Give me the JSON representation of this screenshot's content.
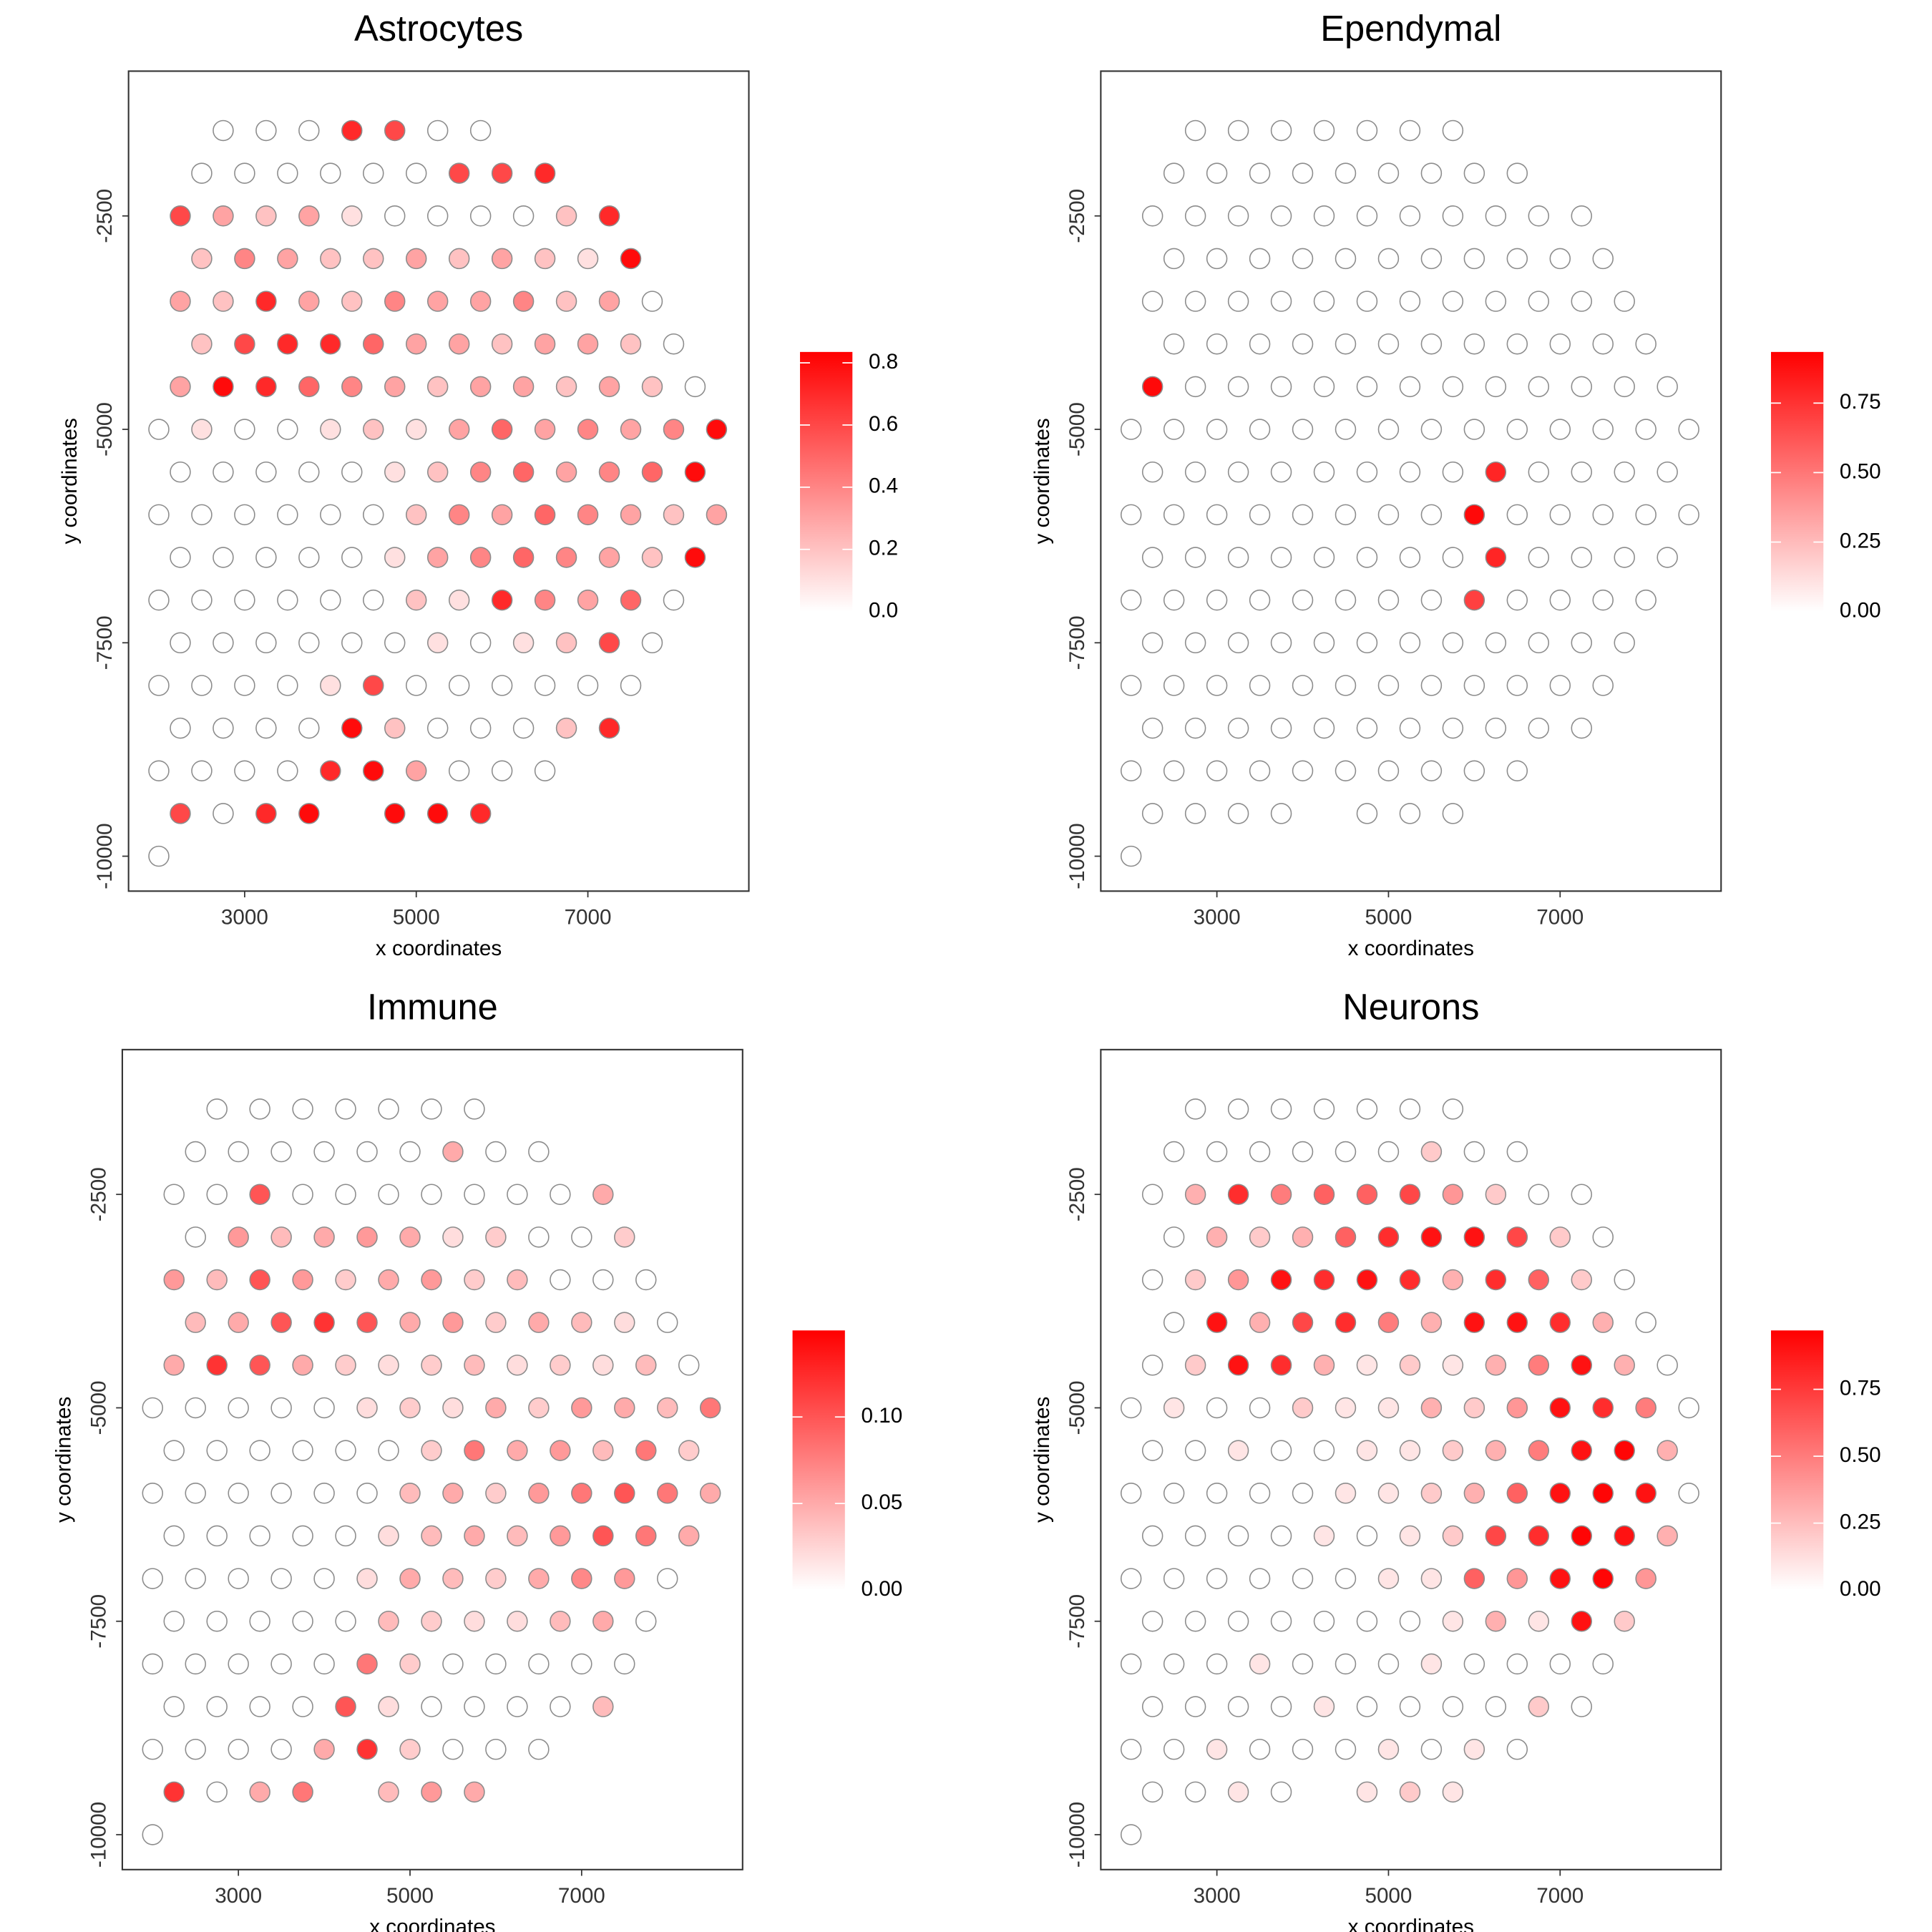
{
  "chart_data": {
    "type": "scatter",
    "x_label": "x coordinates",
    "y_label": "y coordinates",
    "xlim": [
      1647,
      8876
    ],
    "ylim": [
      -10409,
      -804
    ],
    "xticks": [
      3000,
      5000,
      7000
    ],
    "yticks": [
      -2500,
      -5000,
      -7500,
      -10000
    ],
    "low_color": "#ffffff",
    "x": [
      2750,
      3250,
      3750,
      4250,
      4750,
      5250,
      5750,
      2500,
      3000,
      3500,
      4000,
      4500,
      5000,
      5500,
      6000,
      6500,
      2250,
      2750,
      3250,
      3750,
      4250,
      4750,
      5250,
      5750,
      6250,
      6750,
      7250,
      2500,
      3000,
      3500,
      4000,
      4500,
      5000,
      5500,
      6000,
      6500,
      7000,
      7500,
      2250,
      2750,
      3250,
      3750,
      4250,
      4750,
      5250,
      5750,
      6250,
      6750,
      7250,
      7750,
      2500,
      3000,
      3500,
      4000,
      4500,
      5000,
      5500,
      6000,
      6500,
      7000,
      7500,
      8000,
      2250,
      2750,
      3250,
      3750,
      4250,
      4750,
      5250,
      5750,
      6250,
      6750,
      7250,
      7750,
      8250,
      2000,
      2500,
      3000,
      3500,
      4000,
      4500,
      5000,
      5500,
      6000,
      6500,
      7000,
      7500,
      8000,
      8500,
      2250,
      2750,
      3250,
      3750,
      4250,
      4750,
      5250,
      5750,
      6250,
      6750,
      7250,
      7750,
      8250,
      2000,
      2500,
      3000,
      3500,
      4000,
      4500,
      5000,
      5500,
      6000,
      6500,
      7000,
      7500,
      8000,
      8500,
      2250,
      2750,
      3250,
      3750,
      4250,
      4750,
      5250,
      5750,
      6250,
      6750,
      7250,
      7750,
      8250,
      2000,
      2500,
      3000,
      3500,
      4000,
      4500,
      5000,
      5500,
      6000,
      6500,
      7000,
      7500,
      8000,
      2250,
      2750,
      3250,
      3750,
      4250,
      4750,
      5250,
      5750,
      6250,
      6750,
      7250,
      7750,
      2000,
      2500,
      3000,
      3500,
      4000,
      4500,
      5000,
      5500,
      6000,
      6500,
      7000,
      7500,
      2250,
      2750,
      3250,
      3750,
      4250,
      4750,
      5250,
      5750,
      6250,
      6750,
      7250,
      2000,
      2500,
      3000,
      3500,
      4000,
      4500,
      5000,
      5500,
      6000,
      6500,
      2250,
      2750,
      3250,
      3750,
      4750,
      5250,
      5750,
      2000
    ],
    "y": [
      -1500,
      -1500,
      -1500,
      -1500,
      -1500,
      -1500,
      -1500,
      -2000,
      -2000,
      -2000,
      -2000,
      -2000,
      -2000,
      -2000,
      -2000,
      -2000,
      -2500,
      -2500,
      -2500,
      -2500,
      -2500,
      -2500,
      -2500,
      -2500,
      -2500,
      -2500,
      -2500,
      -3000,
      -3000,
      -3000,
      -3000,
      -3000,
      -3000,
      -3000,
      -3000,
      -3000,
      -3000,
      -3000,
      -3500,
      -3500,
      -3500,
      -3500,
      -3500,
      -3500,
      -3500,
      -3500,
      -3500,
      -3500,
      -3500,
      -3500,
      -4000,
      -4000,
      -4000,
      -4000,
      -4000,
      -4000,
      -4000,
      -4000,
      -4000,
      -4000,
      -4000,
      -4000,
      -4500,
      -4500,
      -4500,
      -4500,
      -4500,
      -4500,
      -4500,
      -4500,
      -4500,
      -4500,
      -4500,
      -4500,
      -4500,
      -5000,
      -5000,
      -5000,
      -5000,
      -5000,
      -5000,
      -5000,
      -5000,
      -5000,
      -5000,
      -5000,
      -5000,
      -5000,
      -5000,
      -5500,
      -5500,
      -5500,
      -5500,
      -5500,
      -5500,
      -5500,
      -5500,
      -5500,
      -5500,
      -5500,
      -5500,
      -5500,
      -6000,
      -6000,
      -6000,
      -6000,
      -6000,
      -6000,
      -6000,
      -6000,
      -6000,
      -6000,
      -6000,
      -6000,
      -6000,
      -6000,
      -6500,
      -6500,
      -6500,
      -6500,
      -6500,
      -6500,
      -6500,
      -6500,
      -6500,
      -6500,
      -6500,
      -6500,
      -6500,
      -7000,
      -7000,
      -7000,
      -7000,
      -7000,
      -7000,
      -7000,
      -7000,
      -7000,
      -7000,
      -7000,
      -7000,
      -7000,
      -7500,
      -7500,
      -7500,
      -7500,
      -7500,
      -7500,
      -7500,
      -7500,
      -7500,
      -7500,
      -7500,
      -7500,
      -8000,
      -8000,
      -8000,
      -8000,
      -8000,
      -8000,
      -8000,
      -8000,
      -8000,
      -8000,
      -8000,
      -8000,
      -8500,
      -8500,
      -8500,
      -8500,
      -8500,
      -8500,
      -8500,
      -8500,
      -8500,
      -8500,
      -8500,
      -9000,
      -9000,
      -9000,
      -9000,
      -9000,
      -9000,
      -9000,
      -9000,
      -9000,
      -9000,
      -9500,
      -9500,
      -9500,
      -9500,
      -9500,
      -9500,
      -9500,
      -10000
    ],
    "series": [
      {
        "name": "Astrocytes",
        "color": "#ff0000",
        "colorbar_lim": [
          0,
          0.835
        ],
        "colorbar_ticks": [
          {
            "value": 0,
            "label": "0.0"
          },
          0.2,
          0.4,
          0.6,
          0.8
        ],
        "values": [
          0,
          0,
          0,
          0.7,
          0.6,
          0,
          0,
          0,
          0,
          0,
          0,
          0,
          0,
          0.6,
          0.6,
          0.7,
          0.6,
          0.3,
          0.2,
          0.3,
          0.1,
          0,
          0,
          0,
          0,
          0.2,
          0.7,
          0.2,
          0.4,
          0.3,
          0.2,
          0.2,
          0.3,
          0.2,
          0.3,
          0.2,
          0.1,
          0.8,
          0.3,
          0.2,
          0.7,
          0.3,
          0.2,
          0.4,
          0.3,
          0.3,
          0.4,
          0.2,
          0.3,
          0,
          0.2,
          0.6,
          0.7,
          0.7,
          0.5,
          0.3,
          0.3,
          0.2,
          0.3,
          0.3,
          0.2,
          0,
          0.3,
          0.8,
          0.7,
          0.5,
          0.4,
          0.3,
          0.2,
          0.3,
          0.3,
          0.2,
          0.3,
          0.2,
          0,
          0,
          0.1,
          0,
          0,
          0.1,
          0.2,
          0.1,
          0.3,
          0.5,
          0.3,
          0.4,
          0.3,
          0.4,
          0.8,
          0,
          0,
          0,
          0,
          0,
          0.1,
          0.2,
          0.4,
          0.5,
          0.3,
          0.4,
          0.5,
          0.8,
          0,
          0,
          0,
          0,
          0,
          0,
          0.2,
          0.4,
          0.3,
          0.5,
          0.4,
          0.3,
          0.2,
          0.3,
          0,
          0,
          0,
          0,
          0,
          0.1,
          0.3,
          0.4,
          0.5,
          0.4,
          0.3,
          0.2,
          0.8,
          0,
          0,
          0,
          0,
          0,
          0,
          0.2,
          0.1,
          0.7,
          0.4,
          0.3,
          0.5,
          0,
          0,
          0,
          0,
          0,
          0,
          0,
          0.1,
          0,
          0.1,
          0.2,
          0.6,
          0,
          0,
          0,
          0,
          0,
          0.1,
          0.6,
          0,
          0,
          0,
          0,
          0,
          0,
          0,
          0,
          0,
          0,
          0.8,
          0.2,
          0,
          0,
          0,
          0.2,
          0.7,
          0,
          0,
          0,
          0,
          0.7,
          0.8,
          0.3,
          0,
          0,
          0,
          0.6,
          0,
          0.7,
          0.8,
          0.8,
          0.8,
          0.7,
          0
        ]
      },
      {
        "name": "Ependymal",
        "color": "#ff0000",
        "colorbar_lim": [
          0,
          0.934
        ],
        "colorbar_ticks": [
          {
            "value": 0,
            "label": "0.00"
          },
          0.25,
          {
            "value": 0.5,
            "label": "0.50"
          },
          0.75
        ],
        "values": [
          0,
          0,
          0,
          0,
          0,
          0,
          0,
          0,
          0,
          0,
          0,
          0,
          0,
          0,
          0,
          0,
          0,
          0,
          0,
          0,
          0,
          0,
          0,
          0,
          0,
          0,
          0,
          0,
          0,
          0,
          0,
          0,
          0,
          0,
          0,
          0,
          0,
          0,
          0,
          0,
          0,
          0,
          0,
          0,
          0,
          0,
          0,
          0,
          0,
          0,
          0,
          0,
          0,
          0,
          0,
          0,
          0,
          0,
          0,
          0,
          0,
          0,
          0.9,
          0,
          0,
          0,
          0,
          0,
          0,
          0,
          0,
          0,
          0,
          0,
          0,
          0,
          0,
          0,
          0,
          0,
          0,
          0,
          0,
          0,
          0,
          0,
          0,
          0,
          0,
          0,
          0,
          0,
          0,
          0,
          0,
          0,
          0,
          0.8,
          0,
          0,
          0,
          0,
          0,
          0,
          0,
          0,
          0,
          0,
          0,
          0,
          0.9,
          0,
          0,
          0,
          0,
          0,
          0,
          0,
          0,
          0,
          0,
          0,
          0,
          0,
          0.8,
          0,
          0,
          0,
          0,
          0,
          0,
          0,
          0,
          0,
          0,
          0,
          0,
          0.7,
          0,
          0,
          0,
          0,
          0,
          0,
          0,
          0,
          0,
          0,
          0,
          0,
          0,
          0,
          0,
          0,
          0,
          0,
          0,
          0,
          0,
          0,
          0,
          0,
          0,
          0,
          0,
          0,
          0,
          0,
          0,
          0,
          0,
          0,
          0,
          0,
          0,
          0,
          0,
          0,
          0,
          0,
          0,
          0,
          0,
          0,
          0,
          0,
          0,
          0,
          0,
          0,
          0,
          0,
          0,
          0,
          0
        ]
      },
      {
        "name": "Immune",
        "color": "#ff0000",
        "colorbar_lim": [
          0,
          0.15
        ],
        "colorbar_ticks": [
          {
            "value": 0,
            "label": "0.00"
          },
          0.05,
          {
            "value": 0.1,
            "label": "0.10"
          }
        ],
        "values": [
          0,
          0,
          0,
          0,
          0,
          0,
          0,
          0,
          0,
          0,
          0,
          0,
          0,
          0.05,
          0,
          0,
          0,
          0,
          0.1,
          0,
          0,
          0,
          0,
          0,
          0,
          0,
          0.05,
          0,
          0.06,
          0.04,
          0.05,
          0.06,
          0.05,
          0.02,
          0.03,
          0,
          0,
          0.03,
          0.06,
          0.04,
          0.1,
          0.06,
          0.03,
          0.05,
          0.06,
          0.03,
          0.04,
          0,
          0,
          0,
          0.04,
          0.05,
          0.1,
          0.12,
          0.1,
          0.05,
          0.06,
          0.03,
          0.05,
          0.04,
          0.02,
          0,
          0.05,
          0.12,
          0.1,
          0.05,
          0.03,
          0.02,
          0.03,
          0.04,
          0.02,
          0.03,
          0.02,
          0.04,
          0,
          0,
          0,
          0,
          0,
          0,
          0.02,
          0.03,
          0.02,
          0.05,
          0.03,
          0.06,
          0.05,
          0.04,
          0.08,
          0,
          0,
          0,
          0,
          0,
          0,
          0.03,
          0.08,
          0.05,
          0.06,
          0.04,
          0.08,
          0.03,
          0,
          0,
          0,
          0,
          0,
          0,
          0.04,
          0.05,
          0.03,
          0.06,
          0.08,
          0.1,
          0.08,
          0.05,
          0,
          0,
          0,
          0,
          0,
          0.02,
          0.04,
          0.05,
          0.04,
          0.06,
          0.1,
          0.08,
          0.05,
          0,
          0,
          0,
          0,
          0,
          0.02,
          0.05,
          0.04,
          0.03,
          0.05,
          0.07,
          0.06,
          0,
          0,
          0,
          0,
          0,
          0,
          0.04,
          0.03,
          0.02,
          0.02,
          0.04,
          0.05,
          0,
          0,
          0,
          0,
          0,
          0,
          0.08,
          0.03,
          0,
          0,
          0,
          0,
          0,
          0,
          0,
          0,
          0,
          0.1,
          0.02,
          0,
          0,
          0,
          0,
          0.04,
          0,
          0,
          0,
          0,
          0.05,
          0.12,
          0.03,
          0,
          0,
          0,
          0.12,
          0,
          0.05,
          0.08,
          0.04,
          0.06,
          0.05,
          0
        ]
      },
      {
        "name": "Neurons",
        "color": "#ff0000",
        "colorbar_lim": [
          0,
          0.97
        ],
        "colorbar_ticks": [
          {
            "value": 0,
            "label": "0.00"
          },
          0.25,
          {
            "value": 0.5,
            "label": "0.50"
          },
          0.75
        ],
        "values": [
          0,
          0,
          0,
          0,
          0,
          0,
          0,
          0,
          0,
          0,
          0,
          0,
          0,
          0.2,
          0,
          0,
          0,
          0.3,
          0.8,
          0.5,
          0.6,
          0.6,
          0.7,
          0.4,
          0.2,
          0,
          0,
          0,
          0.3,
          0.2,
          0.3,
          0.6,
          0.8,
          0.9,
          0.9,
          0.7,
          0.2,
          0,
          0,
          0.2,
          0.4,
          0.9,
          0.8,
          0.9,
          0.8,
          0.3,
          0.8,
          0.6,
          0.2,
          0,
          0,
          0.9,
          0.3,
          0.7,
          0.8,
          0.5,
          0.3,
          0.9,
          0.9,
          0.8,
          0.3,
          0,
          0,
          0.2,
          0.9,
          0.8,
          0.3,
          0.1,
          0.2,
          0.1,
          0.3,
          0.5,
          0.9,
          0.3,
          0,
          0,
          0.1,
          0,
          0,
          0.2,
          0.1,
          0.1,
          0.3,
          0.2,
          0.4,
          0.9,
          0.8,
          0.5,
          0,
          0,
          0,
          0.1,
          0,
          0,
          0.1,
          0.1,
          0.2,
          0.3,
          0.5,
          0.9,
          0.95,
          0.3,
          0,
          0,
          0,
          0,
          0,
          0.1,
          0.1,
          0.2,
          0.3,
          0.6,
          0.9,
          0.95,
          0.9,
          0,
          0,
          0,
          0,
          0,
          0.1,
          0,
          0.1,
          0.2,
          0.7,
          0.8,
          0.95,
          0.9,
          0.3,
          0,
          0,
          0,
          0,
          0,
          0,
          0.1,
          0.1,
          0.6,
          0.4,
          0.9,
          0.95,
          0.4,
          0,
          0,
          0,
          0,
          0,
          0,
          0,
          0.1,
          0.3,
          0.1,
          0.9,
          0.2,
          0,
          0,
          0,
          0.1,
          0,
          0,
          0,
          0.1,
          0,
          0,
          0,
          0,
          0,
          0,
          0,
          0,
          0.1,
          0,
          0,
          0,
          0,
          0.2,
          0,
          0,
          0,
          0.1,
          0,
          0,
          0,
          0.1,
          0,
          0.1,
          0,
          0,
          0,
          0.1,
          0,
          0.1,
          0.2,
          0.1,
          0
        ]
      }
    ]
  }
}
